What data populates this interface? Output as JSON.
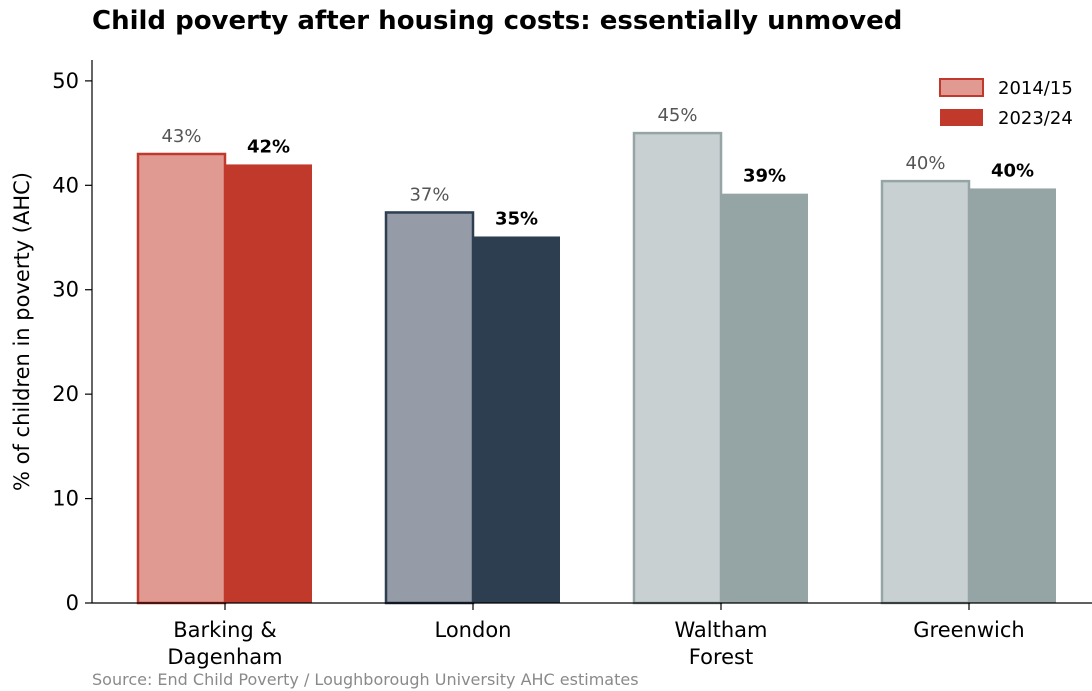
{
  "chart_data": {
    "type": "bar",
    "title": "Child poverty after housing costs: essentially unmoved",
    "ylabel": "% of children in poverty (AHC)",
    "xlabel": "",
    "ylim": [
      0,
      52
    ],
    "yticks": [
      0,
      10,
      20,
      30,
      40,
      50
    ],
    "grid": false,
    "legend_position": "top-right",
    "categories": [
      [
        "Barking &",
        "Dagenham"
      ],
      [
        "London"
      ],
      [
        "Waltham",
        "Forest"
      ],
      [
        "Greenwich"
      ]
    ],
    "series": [
      {
        "name": "2014/15",
        "values": [
          43,
          37.4,
          45,
          40.4
        ],
        "labels": [
          "43%",
          "37%",
          "45%",
          "40%"
        ]
      },
      {
        "name": "2023/24",
        "values": [
          42,
          35.1,
          39.2,
          39.7
        ],
        "labels": [
          "42%",
          "35%",
          "39%",
          "40%"
        ]
      }
    ],
    "colors": {
      "old_fill": [
        "#e09a92",
        "#959ca7",
        "#c8d0d2",
        "#c8d0d2"
      ],
      "old_edge": [
        "#c0392b",
        "#2c3e50",
        "#95a5a6",
        "#95a5a6"
      ],
      "new_fill": [
        "#c0392b",
        "#2c3e50",
        "#95a5a6",
        "#95a5a6"
      ],
      "legend_old_fill": "#e09a92",
      "legend_old_edge": "#c0392b",
      "legend_new_fill": "#c0392b"
    },
    "source": "Source: End Child Poverty / Loughborough University AHC estimates"
  }
}
